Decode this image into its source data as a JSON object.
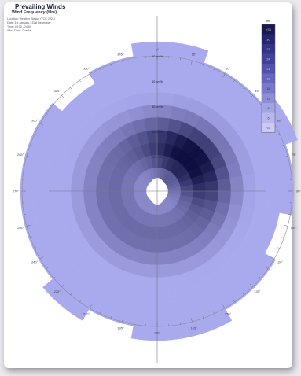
{
  "header": {
    "title": "Prevailing Winds",
    "subtitle": "Wind Frequency (Hrs)",
    "meta": [
      "Location: Weather Station (TCC 2021)",
      "Date: 1st January - 31st December",
      "Time: 00:00 - 24:00",
      "Wind Data: Coastal"
    ]
  },
  "chart_data": {
    "type": "polar-heatmap",
    "title": "Prevailing Winds",
    "subtitle": "Wind Frequency (Hrs)",
    "direction_sectors": 36,
    "speed_ring_labels": [
      "10 km/h",
      "20 km/h",
      "30 km/h",
      "40 km/h",
      "50 km/h"
    ],
    "angle_labels": [
      "0°",
      "15°",
      "30°",
      "45°",
      "60°",
      "75°",
      "90°",
      "105°",
      "120°",
      "135°",
      "150°",
      "165°",
      "180°",
      "195°",
      "210°",
      "225°",
      "240°",
      "255°",
      "270°",
      "285°",
      "300°",
      "315°",
      "330°",
      "345°"
    ],
    "legend": {
      "title": "hrs",
      "position": "top-right",
      "values": [
        ">33",
        "30",
        "27",
        "24",
        "21",
        "18",
        "15",
        "12",
        "9",
        "6",
        "<3"
      ],
      "colors": [
        "#1a1a4e",
        "#262670",
        "#333385",
        "#41419a",
        "#5252ad",
        "#6666bf",
        "#7a7acc",
        "#8f8fd8",
        "#a3a3e3",
        "#b8b8ec",
        "#cacaf4"
      ]
    },
    "outer_ring_extent_by_sector": [
      11,
      11,
      10,
      10,
      10,
      11,
      11,
      10,
      10,
      10,
      9,
      9,
      10,
      10,
      10,
      11,
      11,
      11,
      11,
      10,
      10,
      11,
      11,
      10,
      10,
      10,
      10,
      10,
      10,
      10,
      10,
      9,
      9,
      10,
      10,
      11
    ],
    "peak": {
      "direction_deg": 45,
      "speed_ring": "20 km/h",
      "hours": ">33"
    }
  },
  "colors": {
    "background": "#ffffff",
    "grid": "#666677",
    "lightest": "#a9a9ee",
    "darkest": "#0e0e40"
  }
}
